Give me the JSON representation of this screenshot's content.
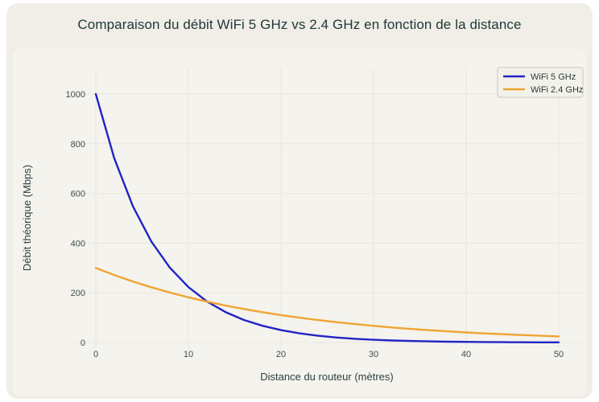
{
  "chart_data": {
    "type": "line",
    "title": "Comparaison du débit WiFi 5 GHz vs 2.4 GHz en fonction de la distance",
    "xlabel": "Distance du routeur (mètres)",
    "ylabel": "Débit théorique (Mbps)",
    "x_ticks": [
      0,
      10,
      20,
      30,
      40,
      50
    ],
    "y_ticks": [
      0,
      200,
      400,
      600,
      800,
      1000
    ],
    "xlim": [
      0,
      50
    ],
    "ylim": [
      0,
      1000
    ],
    "grid": true,
    "grid_color": "#e8e6de",
    "legend_position": "upper right",
    "series": [
      {
        "name": "WiFi 5 GHz",
        "color": "#2124c4",
        "x": [
          0,
          2,
          4,
          6,
          8,
          10,
          12,
          14,
          16,
          18,
          20,
          22,
          24,
          26,
          28,
          30,
          32,
          34,
          36,
          38,
          40,
          42,
          44,
          46,
          48,
          50
        ],
        "y": [
          1000.0,
          740.8,
          548.8,
          406.6,
          301.2,
          223.1,
          165.3,
          122.5,
          90.7,
          67.2,
          49.8,
          36.9,
          27.3,
          20.2,
          15.0,
          11.1,
          8.2,
          6.1,
          4.5,
          3.3,
          2.5,
          1.8,
          1.4,
          1.0,
          0.7,
          0.6
        ]
      },
      {
        "name": "WiFi 2.4 GHz",
        "color": "#f0a432",
        "x": [
          0,
          2,
          4,
          6,
          8,
          10,
          12,
          14,
          16,
          18,
          20,
          22,
          24,
          26,
          28,
          30,
          32,
          34,
          36,
          38,
          40,
          42,
          44,
          46,
          48,
          50
        ],
        "y": [
          300.0,
          271.5,
          245.6,
          222.2,
          201.1,
          182.0,
          164.6,
          149.0,
          134.8,
          122.0,
          110.4,
          99.9,
          90.4,
          81.8,
          74.0,
          66.9,
          60.6,
          54.8,
          49.6,
          44.9,
          40.6,
          36.7,
          33.2,
          30.1,
          27.2,
          24.6
        ]
      }
    ],
    "annotations": {
      "crossover_point": {
        "x": 12,
        "y": 165
      }
    }
  },
  "colors": {
    "card_background": "#f0eee7",
    "panel_background": "#f4f3ed",
    "title_text": "#1e3737",
    "tick_text": "#3e4e50"
  }
}
